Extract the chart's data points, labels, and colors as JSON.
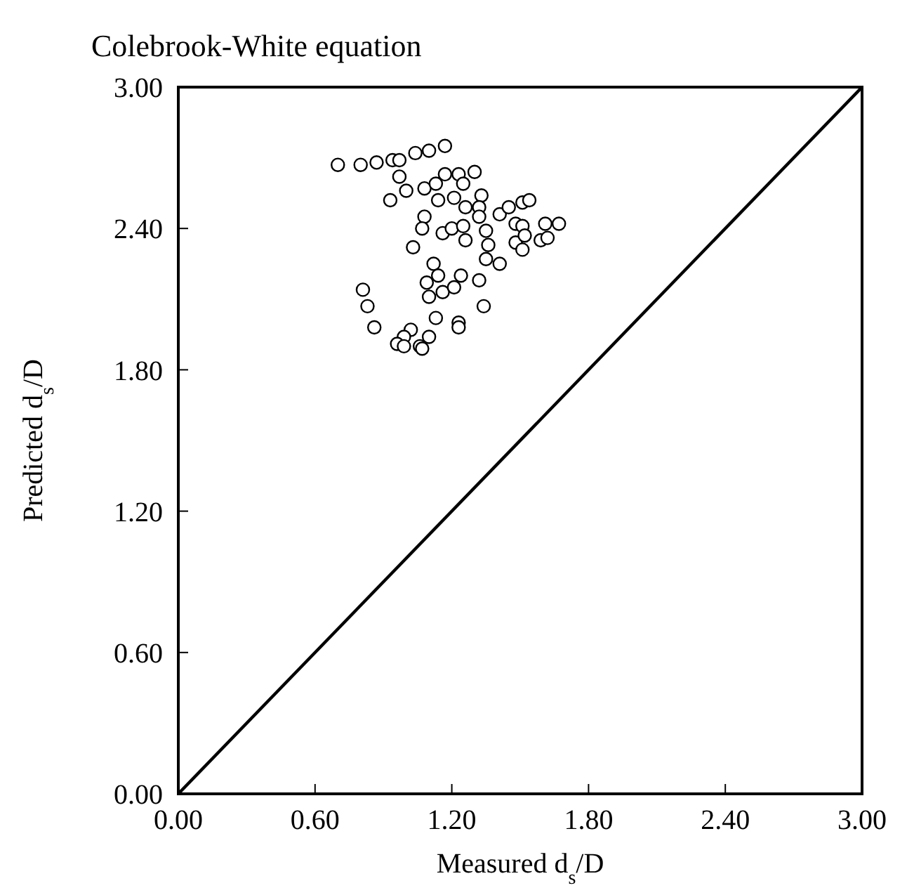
{
  "chart_data": {
    "type": "scatter",
    "title": "Colebrook-White equation",
    "xlabel": "Measured d$_{s}$/D",
    "ylabel": "Predicted d$_{s}$/D",
    "xlim": [
      0,
      3
    ],
    "ylim": [
      0,
      3
    ],
    "xticks": [
      {
        "value": 0,
        "label": "0.00"
      },
      {
        "value": 0.6,
        "label": "0.60"
      },
      {
        "value": 1.2,
        "label": "1.20"
      },
      {
        "value": 1.8,
        "label": "1.80"
      },
      {
        "value": 2.4,
        "label": "2.40"
      },
      {
        "value": 3,
        "label": "3.00"
      }
    ],
    "yticks": [
      {
        "value": 0,
        "label": "0.00"
      },
      {
        "value": 0.6,
        "label": "0.60"
      },
      {
        "value": 1.2,
        "label": "1.20"
      },
      {
        "value": 1.8,
        "label": "1.80"
      },
      {
        "value": 2.4,
        "label": "2.40"
      },
      {
        "value": 3,
        "label": "3.00"
      }
    ],
    "marker": "circle",
    "series": [
      {
        "color": "#000000",
        "x": [
          0.7,
          0.8,
          0.87,
          0.94,
          0.97,
          1.04,
          1.1,
          1.17,
          0.97,
          1.0,
          0.93,
          1.08,
          1.13,
          1.17,
          1.23,
          1.3,
          1.25,
          1.14,
          1.21,
          1.26,
          1.33,
          1.32,
          1.41,
          1.45,
          1.51,
          1.54,
          1.08,
          1.07,
          1.16,
          1.2,
          1.25,
          1.26,
          1.32,
          1.35,
          1.36,
          1.35,
          1.41,
          1.48,
          1.51,
          1.48,
          1.51,
          1.52,
          1.59,
          1.62,
          1.61,
          1.67,
          1.03,
          1.12,
          1.14,
          1.09,
          1.1,
          1.16,
          1.21,
          1.24,
          1.32,
          1.34,
          0.81,
          0.83,
          0.86,
          1.13,
          1.23,
          1.23,
          1.1,
          1.02,
          0.99,
          0.96,
          0.99,
          1.06,
          1.07
        ],
        "values": [
          2.67,
          2.67,
          2.68,
          2.69,
          2.69,
          2.72,
          2.73,
          2.75,
          2.62,
          2.56,
          2.52,
          2.57,
          2.59,
          2.63,
          2.63,
          2.64,
          2.59,
          2.52,
          2.53,
          2.49,
          2.54,
          2.49,
          2.46,
          2.49,
          2.51,
          2.52,
          2.45,
          2.4,
          2.38,
          2.4,
          2.41,
          2.35,
          2.45,
          2.39,
          2.33,
          2.27,
          2.25,
          2.42,
          2.41,
          2.34,
          2.31,
          2.37,
          2.35,
          2.36,
          2.42,
          2.42,
          2.32,
          2.25,
          2.2,
          2.17,
          2.11,
          2.13,
          2.15,
          2.2,
          2.18,
          2.07,
          2.14,
          2.07,
          1.98,
          2.02,
          2.0,
          1.98,
          1.94,
          1.97,
          1.94,
          1.91,
          1.9,
          1.9,
          1.89
        ]
      },
      {
        "type": "line",
        "color": "#000000",
        "line_style": "solid",
        "marker": "none",
        "x": [
          0,
          3
        ],
        "values": [
          0,
          3
        ]
      }
    ]
  }
}
